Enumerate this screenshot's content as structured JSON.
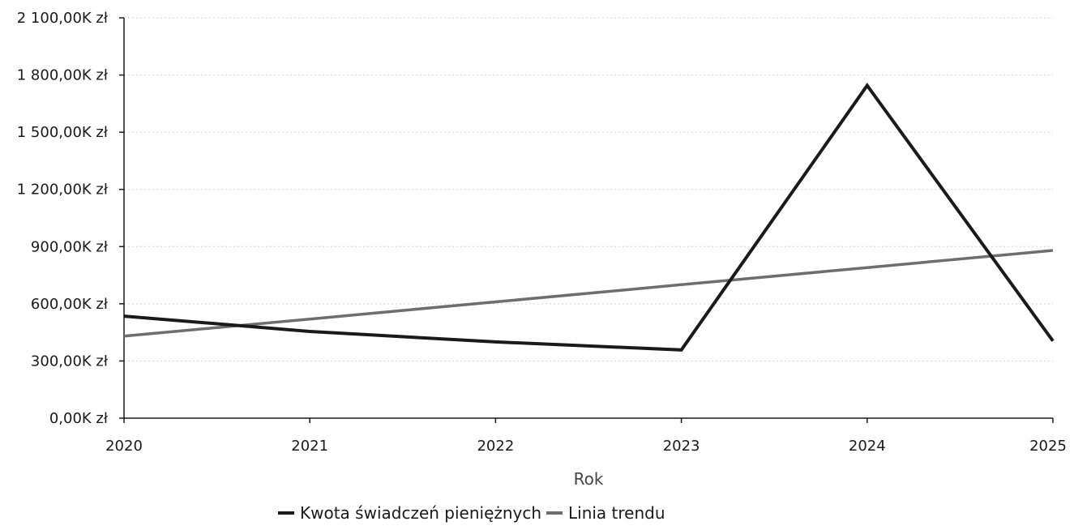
{
  "chart_data": {
    "type": "line",
    "title": "",
    "xlabel": "Rok",
    "ylabel": "",
    "categories": [
      "2020",
      "2021",
      "2022",
      "2023",
      "2024",
      "2025"
    ],
    "ylim": [
      0,
      2100
    ],
    "yticks": [
      0,
      300,
      600,
      900,
      1200,
      1500,
      1800,
      2100
    ],
    "ytick_labels": [
      "0,00K zł",
      "300,00K zł",
      "600,00K zł",
      "900,00K zł",
      "1 200,00K zł",
      "1 500,00K zł",
      "1 800,00K zł",
      "2 100,00K zł"
    ],
    "grid": true,
    "legend_position": "bottom",
    "series": [
      {
        "name": "Kwota świadczeń pieniężnych",
        "values": [
          535,
          455,
          400,
          358,
          1745,
          405
        ],
        "color": "#1a1a1a"
      },
      {
        "name": "Linia trendu",
        "values": [
          430,
          520,
          610,
          700,
          790,
          880
        ],
        "color": "#6e6e6e"
      }
    ]
  }
}
